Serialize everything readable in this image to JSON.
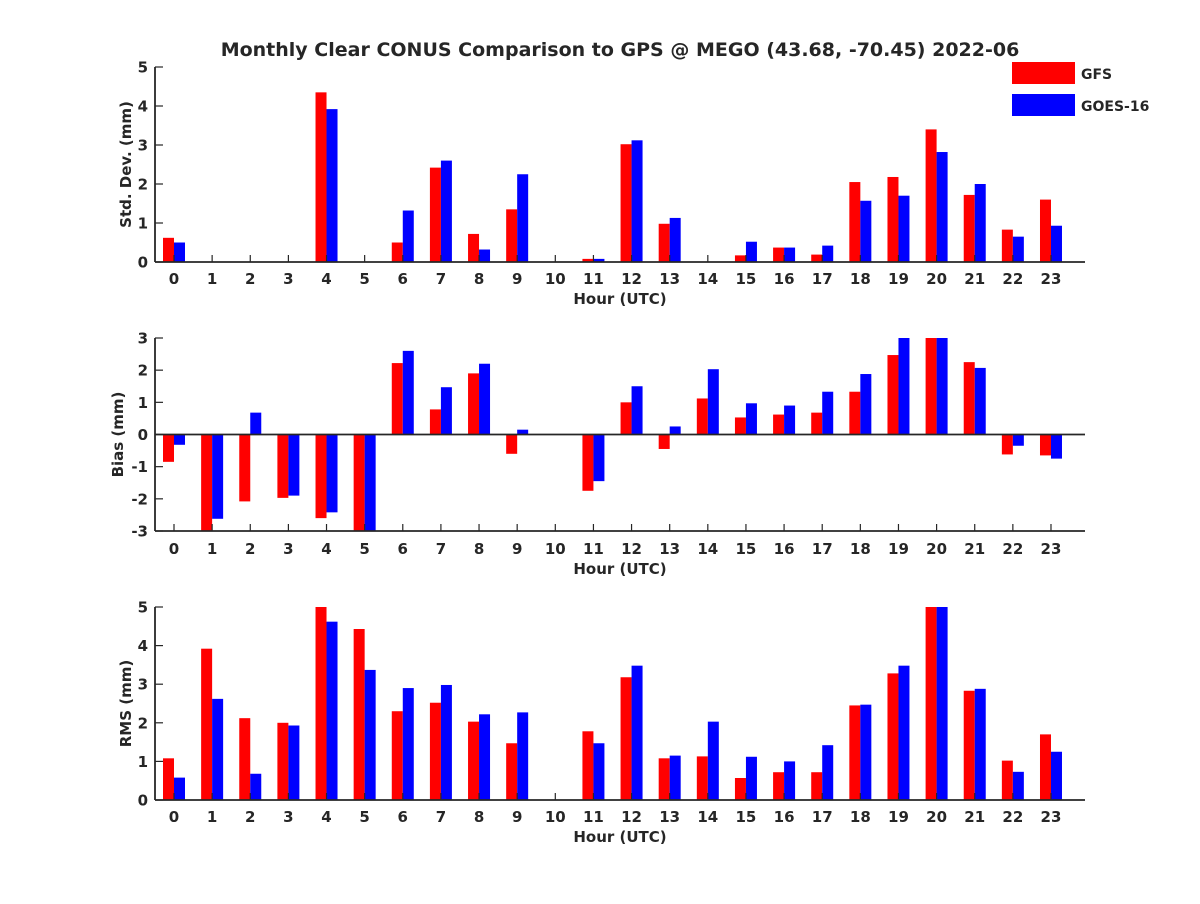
{
  "chart_data": {
    "title": "Monthly Clear CONUS Comparison to GPS @ MEGO (43.68, -70.45) 2022-06",
    "legend": {
      "placement": "top-right",
      "entries": [
        {
          "name": "GFS",
          "color": "#ff0000"
        },
        {
          "name": "GOES-16",
          "color": "#0000ff"
        }
      ]
    },
    "panels": [
      {
        "type": "bar",
        "ylabel": "Std. Dev. (mm)",
        "xlabel": "Hour (UTC)",
        "ylim": [
          0,
          5
        ],
        "yticks": [
          "0",
          "1",
          "2",
          "3",
          "4",
          "5"
        ],
        "categories": [
          "0",
          "1",
          "2",
          "3",
          "4",
          "5",
          "6",
          "7",
          "8",
          "9",
          "10",
          "11",
          "12",
          "13",
          "14",
          "15",
          "16",
          "17",
          "18",
          "19",
          "20",
          "21",
          "22",
          "23"
        ],
        "series": [
          {
            "name": "GFS",
            "color": "#ff0000",
            "values": [
              0.62,
              0,
              0,
              0,
              4.35,
              0,
              0.5,
              2.42,
              0.72,
              1.35,
              0,
              0.08,
              3.02,
              0.98,
              0,
              0.17,
              0.37,
              0.19,
              2.05,
              2.18,
              3.4,
              1.72,
              0.83,
              1.6
            ]
          },
          {
            "name": "GOES-16",
            "color": "#0000ff",
            "values": [
              0.5,
              0,
              0,
              0,
              3.92,
              0,
              1.32,
              2.6,
              0.32,
              2.25,
              0,
              0.08,
              3.12,
              1.13,
              0,
              0.52,
              0.37,
              0.42,
              1.57,
              1.7,
              2.82,
              2.0,
              0.65,
              0.93
            ]
          }
        ]
      },
      {
        "type": "bar",
        "ylabel": "Bias (mm)",
        "xlabel": "Hour (UTC)",
        "ylim": [
          -3,
          3
        ],
        "yticks": [
          "-3",
          "-2",
          "-1",
          "0",
          "1",
          "2",
          "3"
        ],
        "categories": [
          "0",
          "1",
          "2",
          "3",
          "4",
          "5",
          "6",
          "7",
          "8",
          "9",
          "10",
          "11",
          "12",
          "13",
          "14",
          "15",
          "16",
          "17",
          "18",
          "19",
          "20",
          "21",
          "22",
          "23"
        ],
        "series": [
          {
            "name": "GFS",
            "color": "#ff0000",
            "values": [
              -0.85,
              -3.0,
              -2.08,
              -1.97,
              -2.6,
              -3.0,
              2.22,
              0.78,
              1.9,
              -0.6,
              0,
              -1.75,
              1.0,
              -0.45,
              1.12,
              0.53,
              0.62,
              0.68,
              1.33,
              2.47,
              3.0,
              2.25,
              -0.62,
              -0.65
            ]
          },
          {
            "name": "GOES-16",
            "color": "#0000ff",
            "values": [
              -0.32,
              -2.62,
              0.68,
              -1.9,
              -2.42,
              -3.0,
              2.6,
              1.47,
              2.2,
              0.15,
              0,
              -1.45,
              1.5,
              0.25,
              2.03,
              0.97,
              0.9,
              1.33,
              1.88,
              3.0,
              3.0,
              2.07,
              -0.35,
              -0.75
            ]
          }
        ]
      },
      {
        "type": "bar",
        "ylabel": "RMS (mm)",
        "xlabel": "Hour (UTC)",
        "ylim": [
          0,
          5
        ],
        "yticks": [
          "0",
          "1",
          "2",
          "3",
          "4",
          "5"
        ],
        "categories": [
          "0",
          "1",
          "2",
          "3",
          "4",
          "5",
          "6",
          "7",
          "8",
          "9",
          "10",
          "11",
          "12",
          "13",
          "14",
          "15",
          "16",
          "17",
          "18",
          "19",
          "20",
          "21",
          "22",
          "23"
        ],
        "series": [
          {
            "name": "GFS",
            "color": "#ff0000",
            "values": [
              1.08,
              3.92,
              2.12,
              2.0,
              5.0,
              4.43,
              2.3,
              2.52,
              2.03,
              1.47,
              0,
              1.78,
              3.18,
              1.08,
              1.13,
              0.57,
              0.72,
              0.72,
              2.45,
              3.28,
              5.0,
              2.83,
              1.02,
              1.7
            ]
          },
          {
            "name": "GOES-16",
            "color": "#0000ff",
            "values": [
              0.58,
              2.62,
              0.68,
              1.93,
              4.62,
              3.37,
              2.9,
              2.98,
              2.22,
              2.27,
              0,
              1.47,
              3.48,
              1.15,
              2.03,
              1.12,
              1.0,
              1.42,
              2.47,
              3.48,
              5.0,
              2.88,
              0.73,
              1.25
            ]
          }
        ]
      }
    ]
  }
}
